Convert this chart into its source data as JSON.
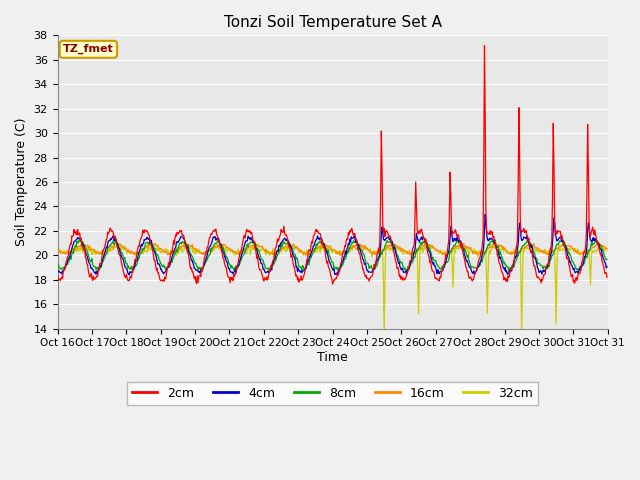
{
  "title": "Tonzi Soil Temperature Set A",
  "xlabel": "Time",
  "ylabel": "Soil Temperature (C)",
  "ylim": [
    14,
    38
  ],
  "yticks": [
    14,
    16,
    18,
    20,
    22,
    24,
    26,
    28,
    30,
    32,
    34,
    36,
    38
  ],
  "annotation": "TZ_fmet",
  "fig_bg_color": "#f0f0f0",
  "plot_bg_color": "#e8e8e8",
  "line_colors": {
    "2cm": "#ff0000",
    "4cm": "#0000cc",
    "8cm": "#00aa00",
    "16cm": "#ff8800",
    "32cm": "#cccc00"
  },
  "xtick_labels": [
    "Oct 16",
    "Oct 17",
    "Oct 18",
    "Oct 19",
    "Oct 20",
    "Oct 21",
    "Oct 22",
    "Oct 23",
    "Oct 24",
    "Oct 25",
    "Oct 26",
    "Oct 27",
    "Oct 28",
    "Oct 29",
    "Oct 30",
    "Oct 31"
  ],
  "n_days": 16,
  "ppd": 48,
  "figsize": [
    6.4,
    4.8
  ],
  "dpi": 100
}
